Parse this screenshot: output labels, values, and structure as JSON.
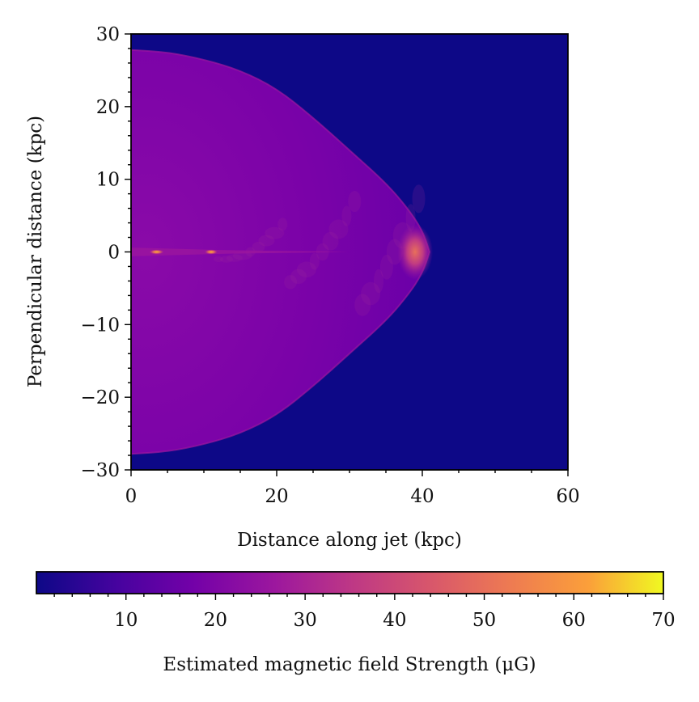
{
  "chart_data": {
    "type": "heatmap",
    "title": "",
    "xlabel": "Distance along jet (kpc)",
    "ylabel": "Perpendicular distance (kpc)",
    "xlim": [
      0,
      60
    ],
    "ylim": [
      -30,
      30
    ],
    "x_ticks": [
      0,
      20,
      40,
      60
    ],
    "y_ticks": [
      30,
      20,
      10,
      0,
      -10,
      -20,
      -30
    ],
    "x_tick_labels": [
      "0",
      "20",
      "40",
      "60"
    ],
    "y_tick_labels": [
      "30",
      "20",
      "10",
      "0",
      "−10",
      "−20",
      "−30"
    ],
    "colormap": "plasma",
    "colorbar": {
      "label": "Estimated magnetic field Strength (μG)",
      "range": [
        0,
        70
      ],
      "ticks": [
        10,
        20,
        30,
        40,
        50,
        60,
        70
      ],
      "tick_labels": [
        "10",
        "20",
        "30",
        "40",
        "50",
        "60",
        "70"
      ],
      "orientation": "horizontal"
    },
    "background_value_uG": 0,
    "cocoon_typical_value_uG": 17,
    "hotspot": {
      "x_kpc": 39,
      "y_kpc": 0,
      "value_uG": 40
    },
    "jet_knots_uG": [
      {
        "x_kpc": 3.5,
        "y_kpc": 0,
        "value_uG": 45
      },
      {
        "x_kpc": 11,
        "y_kpc": 0,
        "value_uG": 35
      }
    ],
    "cocoon_boundary": [
      {
        "x_kpc": 0,
        "half_width_kpc": 27.8
      },
      {
        "x_kpc": 5,
        "half_width_kpc": 27.5
      },
      {
        "x_kpc": 10,
        "half_width_kpc": 26.5
      },
      {
        "x_kpc": 15,
        "half_width_kpc": 25.0
      },
      {
        "x_kpc": 20,
        "half_width_kpc": 22.5
      },
      {
        "x_kpc": 25,
        "half_width_kpc": 18.5
      },
      {
        "x_kpc": 30,
        "half_width_kpc": 14.0
      },
      {
        "x_kpc": 35,
        "half_width_kpc": 9.5
      },
      {
        "x_kpc": 38,
        "half_width_kpc": 6.0
      },
      {
        "x_kpc": 40,
        "half_width_kpc": 3.0
      },
      {
        "x_kpc": 41,
        "half_width_kpc": 0
      }
    ],
    "colors": {
      "background": "#0d0887",
      "cocoon": "#7201a8",
      "cocoon_edge": "#9c179e",
      "hotspot": "#e16462",
      "knot": "#fca636"
    }
  }
}
